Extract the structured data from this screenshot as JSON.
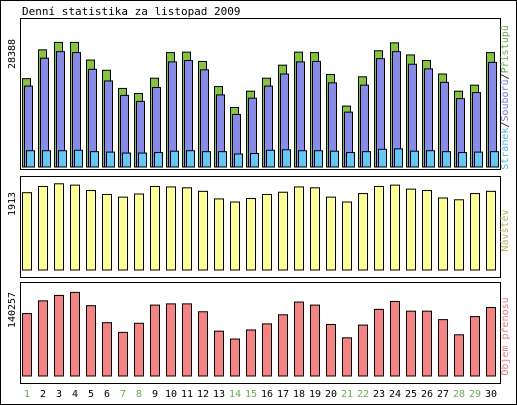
{
  "title": "Denní statistika za listopad 2009",
  "colors": {
    "hits": "#84c441",
    "files": "#8a8ae8",
    "pages": "#66c8f4",
    "visits": "#ffff99",
    "kbytes": "#f48484",
    "weekday": "#000000",
    "weekend": "#6aa84f",
    "label_hits": "#6aa84f",
    "label_files": "#7a7ad8",
    "label_pages": "#5ab0e0",
    "label_visits": "#b8b860",
    "label_kbytes": "#e08080"
  },
  "chart_data": [
    {
      "type": "bar",
      "categories": [
        "1",
        "2",
        "3",
        "4",
        "5",
        "6",
        "7",
        "8",
        "9",
        "10",
        "11",
        "12",
        "13",
        "14",
        "15",
        "16",
        "17",
        "18",
        "19",
        "20",
        "21",
        "22",
        "23",
        "24",
        "25",
        "26",
        "27",
        "28",
        "29",
        "30"
      ],
      "weekend": [
        "1",
        "7",
        "8",
        "14",
        "15",
        "21",
        "22",
        "28",
        "29"
      ],
      "ylabel_parts": [
        "Stránek",
        "Souborů",
        "Přístupů"
      ],
      "ytick": "28388",
      "ymax": 28388,
      "series": [
        {
          "name": "Přístupů",
          "key": "hits",
          "values": [
            19000,
            25200,
            26800,
            26800,
            23000,
            20800,
            16900,
            15800,
            19100,
            24600,
            24700,
            22700,
            17300,
            12800,
            16300,
            19100,
            21900,
            24700,
            24600,
            19900,
            13100,
            19400,
            25000,
            26700,
            24100,
            22900,
            20000,
            16300,
            17600,
            24600
          ]
        },
        {
          "name": "Souborů",
          "key": "files",
          "values": [
            17400,
            23400,
            24800,
            24600,
            21000,
            18500,
            15400,
            14100,
            17100,
            22600,
            22900,
            20900,
            15500,
            11300,
            14800,
            17400,
            20000,
            22600,
            22700,
            18100,
            11800,
            17600,
            23300,
            24800,
            22100,
            21100,
            18200,
            14700,
            16000,
            22500
          ]
        },
        {
          "name": "Stránek",
          "key": "pages",
          "values": [
            3500,
            3500,
            3500,
            3600,
            3300,
            3200,
            3000,
            3000,
            3100,
            3400,
            3500,
            3300,
            3300,
            2800,
            2900,
            3600,
            3700,
            3500,
            3500,
            3400,
            3100,
            3300,
            3800,
            3900,
            3400,
            3500,
            3300,
            3100,
            3200,
            3300
          ]
        }
      ]
    },
    {
      "type": "bar",
      "categories": [
        "1",
        "2",
        "3",
        "4",
        "5",
        "6",
        "7",
        "8",
        "9",
        "10",
        "11",
        "12",
        "13",
        "14",
        "15",
        "16",
        "17",
        "18",
        "19",
        "20",
        "21",
        "22",
        "23",
        "24",
        "25",
        "26",
        "27",
        "28",
        "29",
        "30"
      ],
      "ylabel": "Návštěv",
      "ytick": "1913",
      "ymax": 1913,
      "series": [
        {
          "name": "Návštěv",
          "key": "visits",
          "values": [
            1740,
            1880,
            1940,
            1910,
            1790,
            1700,
            1640,
            1710,
            1880,
            1870,
            1850,
            1770,
            1600,
            1530,
            1610,
            1700,
            1750,
            1870,
            1850,
            1640,
            1530,
            1720,
            1880,
            1910,
            1820,
            1790,
            1620,
            1580,
            1720,
            1770
          ]
        }
      ]
    },
    {
      "type": "bar",
      "categories": [
        "1",
        "2",
        "3",
        "4",
        "5",
        "6",
        "7",
        "8",
        "9",
        "10",
        "11",
        "12",
        "13",
        "14",
        "15",
        "16",
        "17",
        "18",
        "19",
        "20",
        "21",
        "22",
        "23",
        "24",
        "25",
        "26",
        "27",
        "28",
        "29",
        "30"
      ],
      "ylabel": "Objem přenosu",
      "ytick": "140257",
      "ymax": 140257,
      "series": [
        {
          "name": "Objem přenosu",
          "key": "kbytes",
          "values": [
            103000,
            124000,
            133000,
            138000,
            116000,
            88000,
            72000,
            87000,
            117000,
            119000,
            119000,
            106000,
            74000,
            61000,
            76000,
            86000,
            101000,
            122000,
            117000,
            85000,
            63000,
            84000,
            110000,
            123000,
            107000,
            107000,
            93000,
            68000,
            98000,
            113000
          ]
        }
      ]
    }
  ]
}
